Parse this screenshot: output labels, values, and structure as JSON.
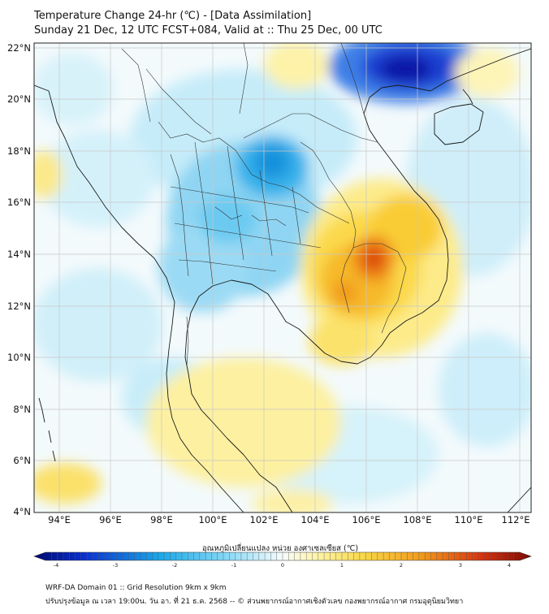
{
  "title": {
    "line1": "Temperature Change 24-hr (℃) - [Data Assimilation]",
    "line2": "Sunday 21 Dec, 12 UTC FCST+084, Valid at :: Thu 25 Dec, 00 UTC"
  },
  "map": {
    "lat_labels": [
      "22°N",
      "20°N",
      "18°N",
      "16°N",
      "14°N",
      "12°N",
      "10°N",
      "8°N",
      "6°N",
      "4°N"
    ],
    "lon_labels": [
      "94°E",
      "96°E",
      "98°E",
      "100°E",
      "102°E",
      "104°E",
      "106°E",
      "108°E",
      "110°E",
      "112°E"
    ],
    "lat_range": [
      4,
      22
    ],
    "lon_range": [
      93,
      112.5
    ]
  },
  "colorbar": {
    "title": "อุณหภูมิเปลี่ยนแปลง หน่วย องศาเซลเซียส (℃)",
    "ticks": [
      "-4",
      "-3",
      "-2",
      "-1",
      "0",
      "1",
      "2",
      "3",
      "4"
    ],
    "range": [
      -4,
      4
    ]
  },
  "footer": {
    "line1": "WRF-DA Domain 01 :: Grid Resolution 9km x 9km",
    "line2": "ปรับปรุงข้อมูล ณ เวลา 19:00น. วัน อา. ที่ 21 ธ.ค. 2568 -- © ส่วนพยากรณ์อากาศเชิงตัวเลข กองพยากรณ์อากาศ กรมอุตุนิยมวิทยา"
  },
  "colors": {
    "strong_cold": "#0a1fb4",
    "cold": "#1aa6e8",
    "light_cold": "#bfeaf8",
    "neutral": "#f4fbfd",
    "light_warm": "#fdf3a6",
    "warm": "#f7c225",
    "hot": "#ee6a0e",
    "very_hot": "#b4130e",
    "gridline": "#bdbdbd",
    "border": "#222222"
  }
}
